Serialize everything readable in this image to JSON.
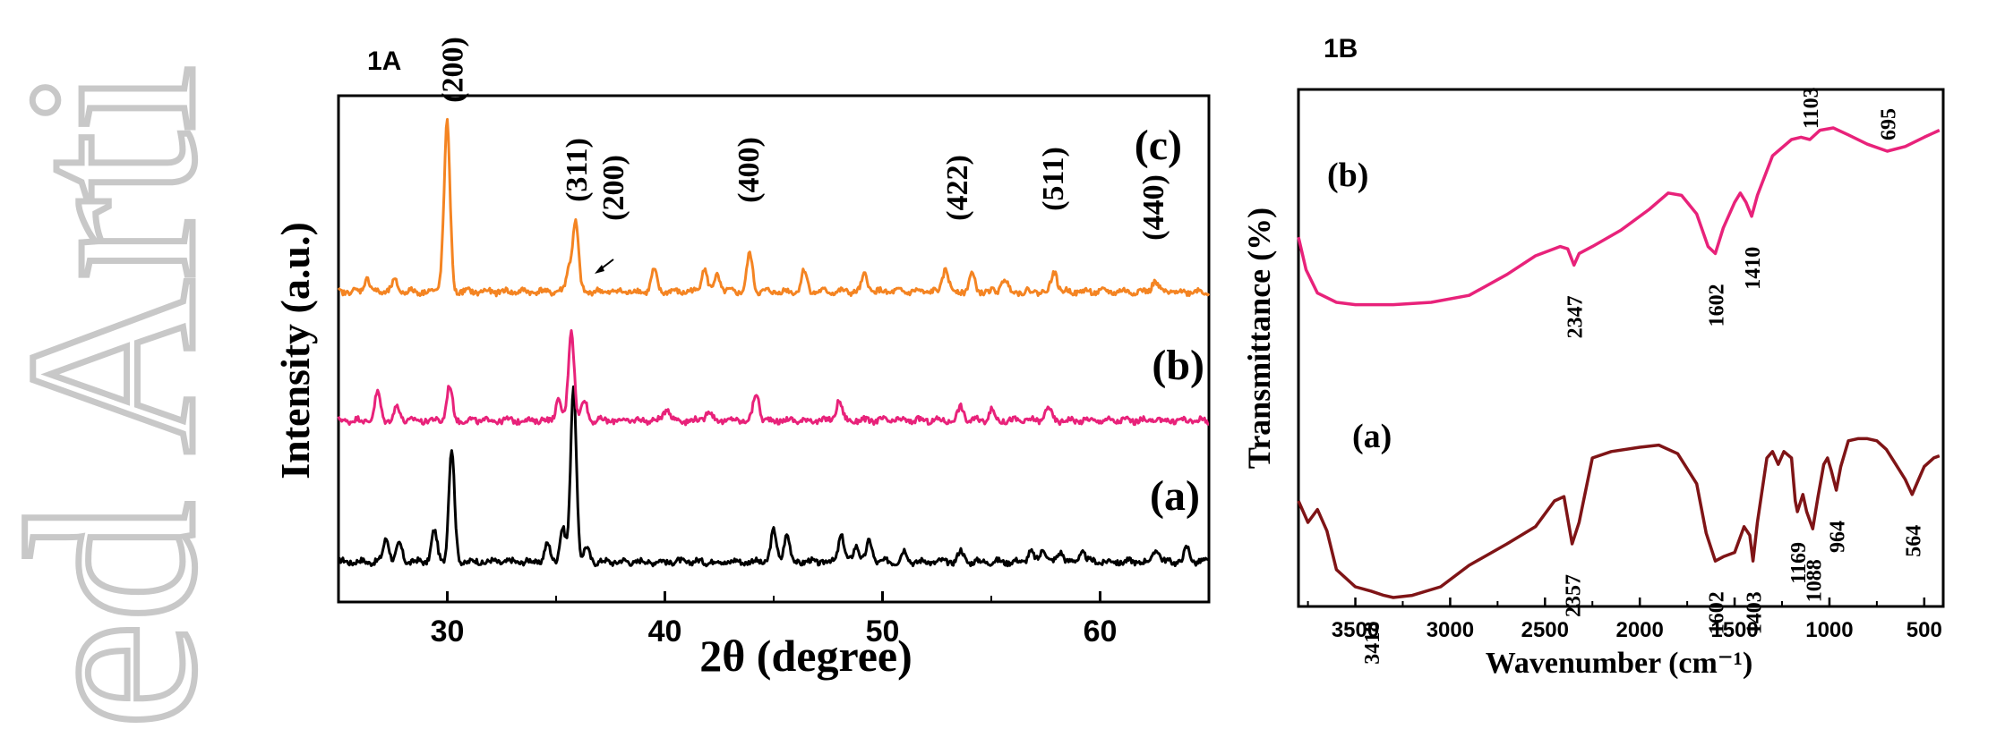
{
  "chart_data": [
    {
      "type": "line",
      "panel_label": "1A",
      "xlabel": "2θ (degree)",
      "ylabel": "Intensity (a.u.)",
      "xlim": [
        25,
        65
      ],
      "x_ticks": [
        30,
        40,
        50,
        60
      ],
      "tick_labels": [
        "30",
        "40",
        "50",
        "60"
      ],
      "y_ticks": false,
      "grid": false,
      "series": [
        {
          "name": "(a)",
          "color": "#000000",
          "peaks": [
            [
              27.2,
              7
            ],
            [
              27.8,
              5
            ],
            [
              29.4,
              9
            ],
            [
              30.2,
              33
            ],
            [
              34.6,
              5
            ],
            [
              35.3,
              10
            ],
            [
              35.8,
              52
            ],
            [
              36.4,
              4
            ],
            [
              45.0,
              9
            ],
            [
              45.6,
              8
            ],
            [
              48.1,
              8
            ],
            [
              48.8,
              5
            ],
            [
              49.4,
              6
            ],
            [
              51.0,
              3
            ],
            [
              53.6,
              3
            ],
            [
              56.8,
              3
            ],
            [
              57.4,
              4
            ],
            [
              58.2,
              3
            ],
            [
              59.2,
              3
            ],
            [
              62.6,
              4
            ],
            [
              64.0,
              4
            ]
          ]
        },
        {
          "name": "(b)",
          "color": "#e8227a",
          "peaks": [
            [
              26.8,
              8
            ],
            [
              27.7,
              4
            ],
            [
              30.1,
              10
            ],
            [
              35.1,
              6
            ],
            [
              35.7,
              27
            ],
            [
              36.3,
              6
            ],
            [
              40.1,
              4
            ],
            [
              42.0,
              3
            ],
            [
              44.2,
              8
            ],
            [
              48.0,
              6
            ],
            [
              53.6,
              4
            ],
            [
              55.0,
              3
            ],
            [
              57.6,
              4
            ]
          ]
        },
        {
          "name": "(c)",
          "color": "#f48422",
          "peaks": [
            [
              26.3,
              4
            ],
            [
              27.6,
              3
            ],
            [
              29.8,
              5
            ],
            [
              30.0,
              48
            ],
            [
              35.6,
              7
            ],
            [
              35.9,
              20
            ],
            [
              39.5,
              6
            ],
            [
              41.8,
              7
            ],
            [
              42.4,
              5
            ],
            [
              43.9,
              11
            ],
            [
              46.4,
              6
            ],
            [
              49.2,
              5
            ],
            [
              52.9,
              7
            ],
            [
              54.1,
              5
            ],
            [
              55.6,
              4
            ],
            [
              57.9,
              6
            ],
            [
              62.5,
              3
            ]
          ]
        }
      ],
      "annotations": [
        {
          "text": "(200)",
          "x": 30.2
        },
        {
          "text": "(311)",
          "x": 35.9
        },
        {
          "text": "(200)",
          "x": 37.6
        },
        {
          "text": "(400)",
          "x": 43.8
        },
        {
          "text": "(422)",
          "x": 53.4
        },
        {
          "text": "(511)",
          "x": 57.8
        },
        {
          "text": "(440)",
          "x": 62.4
        }
      ]
    },
    {
      "type": "line",
      "panel_label": "1B",
      "xlabel": "Wavenumber (cm⁻¹)",
      "ylabel": "Transmittance (%)",
      "xlim": [
        3800,
        400
      ],
      "x_reversed": true,
      "x_ticks": [
        3500,
        3000,
        2500,
        2000,
        1500,
        1000,
        500
      ],
      "tick_labels": [
        "3500",
        "3000",
        "2500",
        "2000",
        "1500",
        "1000",
        "500"
      ],
      "y_ticks": false,
      "grid": false,
      "series": [
        {
          "name": "(b)",
          "color": "#e8227a",
          "points": [
            [
              3800,
              48
            ],
            [
              3760,
              34
            ],
            [
              3700,
              24
            ],
            [
              3600,
              20
            ],
            [
              3500,
              19
            ],
            [
              3300,
              19
            ],
            [
              3100,
              20
            ],
            [
              2900,
              23
            ],
            [
              2700,
              32
            ],
            [
              2550,
              40
            ],
            [
              2420,
              44
            ],
            [
              2380,
              43
            ],
            [
              2347,
              36
            ],
            [
              2320,
              41
            ],
            [
              2250,
              44
            ],
            [
              2100,
              51
            ],
            [
              1950,
              60
            ],
            [
              1850,
              67
            ],
            [
              1780,
              66
            ],
            [
              1700,
              58
            ],
            [
              1640,
              44
            ],
            [
              1602,
              41
            ],
            [
              1560,
              52
            ],
            [
              1500,
              63
            ],
            [
              1470,
              67
            ],
            [
              1440,
              63
            ],
            [
              1410,
              57
            ],
            [
              1380,
              66
            ],
            [
              1300,
              83
            ],
            [
              1200,
              90
            ],
            [
              1150,
              91
            ],
            [
              1103,
              90
            ],
            [
              1050,
              94
            ],
            [
              980,
              95
            ],
            [
              900,
              92
            ],
            [
              800,
              88
            ],
            [
              695,
              85
            ],
            [
              600,
              87
            ],
            [
              500,
              91
            ],
            [
              420,
              94
            ]
          ]
        },
        {
          "name": "(a)",
          "color": "#7f1416",
          "points": [
            [
              3800,
              50
            ],
            [
              3750,
              40
            ],
            [
              3700,
              46
            ],
            [
              3650,
              36
            ],
            [
              3600,
              18
            ],
            [
              3500,
              10
            ],
            [
              3418,
              8
            ],
            [
              3350,
              6
            ],
            [
              3300,
              5
            ],
            [
              3200,
              6
            ],
            [
              3050,
              10
            ],
            [
              2900,
              20
            ],
            [
              2700,
              30
            ],
            [
              2550,
              38
            ],
            [
              2450,
              50
            ],
            [
              2400,
              52
            ],
            [
              2357,
              30
            ],
            [
              2320,
              40
            ],
            [
              2250,
              70
            ],
            [
              2150,
              73
            ],
            [
              2000,
              75
            ],
            [
              1900,
              76
            ],
            [
              1800,
              72
            ],
            [
              1700,
              58
            ],
            [
              1650,
              35
            ],
            [
              1602,
              22
            ],
            [
              1560,
              24
            ],
            [
              1500,
              26
            ],
            [
              1450,
              38
            ],
            [
              1420,
              34
            ],
            [
              1403,
              22
            ],
            [
              1380,
              40
            ],
            [
              1330,
              70
            ],
            [
              1300,
              73
            ],
            [
              1270,
              67
            ],
            [
              1240,
              73
            ],
            [
              1200,
              70
            ],
            [
              1180,
              50
            ],
            [
              1169,
              45
            ],
            [
              1140,
              53
            ],
            [
              1120,
              45
            ],
            [
              1088,
              37
            ],
            [
              1060,
              52
            ],
            [
              1030,
              67
            ],
            [
              1010,
              70
            ],
            [
              990,
              64
            ],
            [
              964,
              55
            ],
            [
              940,
              66
            ],
            [
              900,
              78
            ],
            [
              850,
              79
            ],
            [
              800,
              79
            ],
            [
              750,
              78
            ],
            [
              700,
              74
            ],
            [
              650,
              67
            ],
            [
              600,
              60
            ],
            [
              564,
              53
            ],
            [
              530,
              60
            ],
            [
              500,
              66
            ],
            [
              450,
              70
            ],
            [
              420,
              71
            ]
          ]
        }
      ],
      "annotations": [
        {
          "text": "2347",
          "series": "(b)",
          "x": 2347
        },
        {
          "text": "1602",
          "series": "(b)",
          "x": 1602
        },
        {
          "text": "1410",
          "series": "(b)",
          "x": 1410
        },
        {
          "text": "1103",
          "series": "(b)",
          "x": 1103
        },
        {
          "text": "695",
          "series": "(b)",
          "x": 695
        },
        {
          "text": "3418",
          "series": "(a)",
          "x": 3418
        },
        {
          "text": "2357",
          "series": "(a)",
          "x": 2357
        },
        {
          "text": "1602",
          "series": "(a)",
          "x": 1602
        },
        {
          "text": "1403",
          "series": "(a)",
          "x": 1403
        },
        {
          "text": "1169",
          "series": "(a)",
          "x": 1169
        },
        {
          "text": "1088",
          "series": "(a)",
          "x": 1088
        },
        {
          "text": "964",
          "series": "(a)",
          "x": 964
        },
        {
          "text": "564",
          "series": "(a)",
          "x": 564
        }
      ]
    }
  ],
  "watermark": {
    "text": "ed Arti",
    "color": "#c8c8c8"
  }
}
